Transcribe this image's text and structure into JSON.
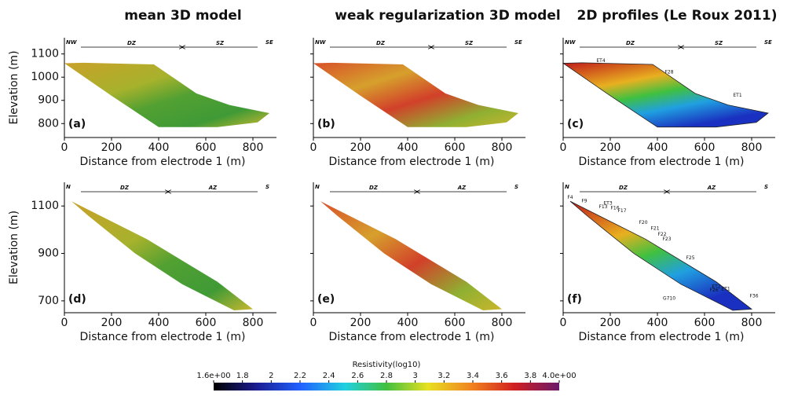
{
  "columns": [
    "mean 3D model",
    "weak regularization 3D model",
    "2D profiles (Le Roux 2011)"
  ],
  "y_label": "Elevation (m)",
  "x_label": "Distance from electrode 1 (m)",
  "xlim": [
    0,
    900
  ],
  "xticks": [
    0,
    200,
    400,
    600,
    800
  ],
  "rows": [
    {
      "ylim": [
        740,
        1170
      ],
      "yticks": [
        800,
        900,
        1000,
        1100
      ],
      "left": "NW",
      "right": "SE",
      "zone1": "DZ",
      "zone2": "SZ",
      "split": 500,
      "panels": [
        "(a)",
        "(b)",
        "(c)"
      ]
    },
    {
      "ylim": [
        650,
        1200
      ],
      "yticks": [
        700,
        900,
        1100
      ],
      "left": "N",
      "right": "S",
      "zone1": "DZ",
      "zone2": "AZ",
      "split": 440,
      "panels": [
        "(d)",
        "(e)",
        "(f)"
      ]
    }
  ],
  "profile_labels": {
    "c": [
      "ET4",
      "F28",
      "ET1"
    ],
    "f": [
      "F4",
      "F9",
      "ET3",
      "F13",
      "F16",
      "F17",
      "F20",
      "F21",
      "F22",
      "F23",
      "F25",
      "ET2",
      "F26",
      "ET1",
      "F36",
      "G710"
    ]
  },
  "colorbar": {
    "title": "Resistivity(log10)",
    "lim": [
      1.6,
      4.0
    ],
    "ticks": [
      {
        "value": 1.6,
        "label": "1.6e+00"
      },
      1.8,
      2,
      2.2,
      2.4,
      2.6,
      2.8,
      3,
      3.2,
      3.4,
      3.6,
      3.8,
      {
        "value": 4.0,
        "label": "4.0e+00"
      }
    ]
  }
}
